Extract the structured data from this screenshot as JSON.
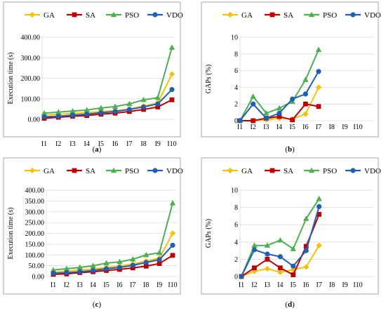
{
  "chart_data": [
    {
      "type": "line",
      "caption": "(a)",
      "ylabel": "Execution time (s)",
      "xlabel": "",
      "categories": [
        "I1",
        "I2",
        "I3",
        "I4",
        "I5",
        "I6",
        "I7",
        "I8",
        "I9",
        "I10"
      ],
      "ylim": [
        0,
        400
      ],
      "yticks": [
        0,
        100,
        200,
        300,
        400
      ],
      "ytick_labels": [
        "0.00",
        "100.00",
        "200.00",
        "300.00",
        "400.00"
      ],
      "legend_position": "top",
      "grid": true,
      "series": [
        {
          "name": "GA",
          "color": "#f4c20d",
          "marker": "diamond",
          "values": [
            20,
            25,
            28,
            32,
            38,
            42,
            50,
            65,
            80,
            220
          ]
        },
        {
          "name": "SA",
          "color": "#c00000",
          "marker": "square",
          "values": [
            5,
            10,
            15,
            18,
            25,
            30,
            38,
            48,
            60,
            95
          ]
        },
        {
          "name": "PSO",
          "color": "#4caf50",
          "marker": "triangle",
          "values": [
            30,
            35,
            40,
            45,
            55,
            62,
            75,
            95,
            105,
            350
          ]
        },
        {
          "name": "VDO",
          "color": "#1f5fb4",
          "marker": "circle",
          "values": [
            12,
            15,
            20,
            25,
            32,
            38,
            48,
            60,
            75,
            145
          ]
        }
      ]
    },
    {
      "type": "line",
      "caption": "(b)",
      "ylabel": "GAPs (%)",
      "xlabel": "",
      "categories": [
        "I1",
        "I2",
        "I3",
        "I4",
        "I5",
        "I6",
        "I7",
        "I8",
        "I9",
        "I10"
      ],
      "ylim": [
        0,
        10
      ],
      "yticks": [
        0,
        2,
        4,
        6,
        8,
        10
      ],
      "ytick_labels": [
        "0",
        "2",
        "4",
        "6",
        "8",
        "10"
      ],
      "legend_position": "top",
      "grid": true,
      "series": [
        {
          "name": "GA",
          "color": "#f4c20d",
          "marker": "diamond",
          "values": [
            0,
            0,
            0.1,
            0.3,
            0.2,
            0.8,
            4.0,
            null,
            null,
            null
          ]
        },
        {
          "name": "SA",
          "color": "#c00000",
          "marker": "square",
          "values": [
            0,
            0,
            0.3,
            0.5,
            0.1,
            2.0,
            1.7,
            null,
            null,
            null
          ]
        },
        {
          "name": "PSO",
          "color": "#4caf50",
          "marker": "triangle",
          "values": [
            0,
            2.9,
            0.9,
            1.5,
            2.3,
            4.9,
            8.5,
            null,
            null,
            null
          ]
        },
        {
          "name": "VDO",
          "color": "#1f5fb4",
          "marker": "circle",
          "values": [
            0,
            2.0,
            0.3,
            0.9,
            2.6,
            3.2,
            5.9,
            null,
            null,
            null
          ]
        }
      ]
    },
    {
      "type": "line",
      "caption": "(c)",
      "ylabel": "Execution time (s)",
      "xlabel": "",
      "categories": [
        "I1",
        "I2",
        "I3",
        "I4",
        "I5",
        "I6",
        "I7",
        "I8",
        "I9",
        "I10"
      ],
      "ylim": [
        0,
        400
      ],
      "yticks": [
        0,
        50,
        100,
        150,
        200,
        250,
        300,
        350,
        400
      ],
      "ytick_labels": [
        "0.00",
        "50.00",
        "100.00",
        "150.00",
        "200.00",
        "250.00",
        "300.00",
        "350.00",
        "400.00"
      ],
      "legend_position": "top",
      "grid": true,
      "series": [
        {
          "name": "GA",
          "color": "#f4c20d",
          "marker": "diamond",
          "values": [
            20,
            25,
            30,
            35,
            42,
            48,
            58,
            72,
            85,
            200
          ]
        },
        {
          "name": "SA",
          "color": "#c00000",
          "marker": "square",
          "values": [
            10,
            12,
            18,
            22,
            28,
            33,
            40,
            48,
            60,
            98
          ]
        },
        {
          "name": "PSO",
          "color": "#4caf50",
          "marker": "triangle",
          "values": [
            30,
            36,
            42,
            50,
            62,
            68,
            80,
            100,
            110,
            340
          ]
        },
        {
          "name": "VDO",
          "color": "#1f5fb4",
          "marker": "circle",
          "values": [
            15,
            18,
            22,
            28,
            36,
            42,
            52,
            65,
            78,
            145
          ]
        }
      ]
    },
    {
      "type": "line",
      "caption": "(d)",
      "ylabel": "GAPs (%)",
      "xlabel": "",
      "categories": [
        "I1",
        "I2",
        "I3",
        "I4",
        "I5",
        "I6",
        "I7",
        "I8",
        "I9",
        "I10"
      ],
      "ylim": [
        0,
        10
      ],
      "yticks": [
        0,
        2,
        4,
        6,
        8,
        10
      ],
      "ytick_labels": [
        "0",
        "2",
        "4",
        "6",
        "8",
        "10"
      ],
      "legend_position": "top",
      "grid": true,
      "series": [
        {
          "name": "GA",
          "color": "#f4c20d",
          "marker": "diamond",
          "values": [
            0,
            0.6,
            0.9,
            0.5,
            0.8,
            1.1,
            3.6,
            null,
            null,
            null
          ]
        },
        {
          "name": "SA",
          "color": "#c00000",
          "marker": "square",
          "values": [
            0,
            1.0,
            2.0,
            1.0,
            0.2,
            3.5,
            7.2,
            null,
            null,
            null
          ]
        },
        {
          "name": "PSO",
          "color": "#4caf50",
          "marker": "triangle",
          "values": [
            0,
            3.6,
            3.6,
            4.2,
            3.2,
            6.7,
            9.0,
            null,
            null,
            null
          ]
        },
        {
          "name": "VDO",
          "color": "#1f5fb4",
          "marker": "circle",
          "values": [
            0,
            3.1,
            2.6,
            2.3,
            1.2,
            3.0,
            8.1,
            null,
            null,
            null
          ]
        }
      ]
    }
  ]
}
